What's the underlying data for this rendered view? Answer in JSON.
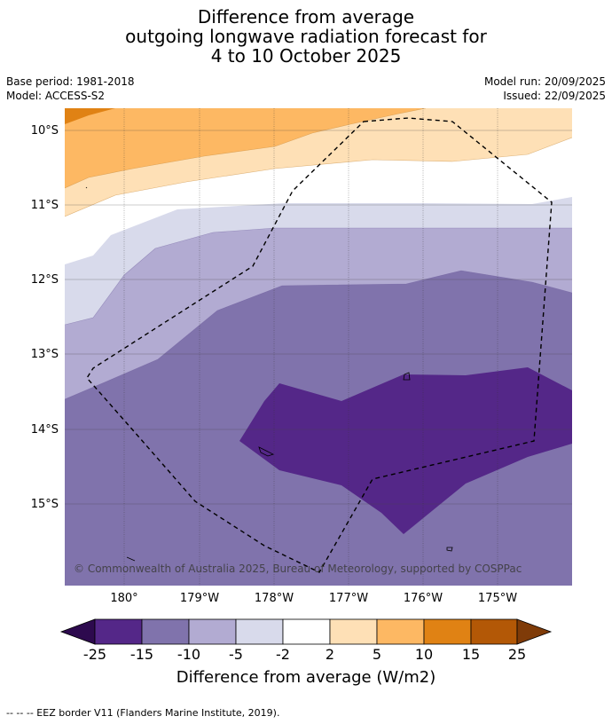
{
  "title": {
    "line1": "Difference from average",
    "line2": "outgoing longwave radiation forecast for",
    "line3": "4 to 10 October 2025"
  },
  "meta": {
    "base_period": "Base period: 1981-2018",
    "model": "Model: ACCESS-S2",
    "model_run": "Model run: 20/09/2025",
    "issued": "Issued: 22/09/2025"
  },
  "map": {
    "lat_labels": [
      "10°S",
      "11°S",
      "12°S",
      "13°S",
      "14°S",
      "15°S"
    ],
    "lon_labels": [
      "180°",
      "179°W",
      "178°W",
      "177°W",
      "176°W",
      "175°W"
    ],
    "copyright": "© Commonwealth of Australia 2025, Bureau of Meteorology, supported by COSPPac"
  },
  "legend": {
    "ticks": [
      "-25",
      "-15",
      "-10",
      "-5",
      "-2",
      "2",
      "5",
      "10",
      "15",
      "25"
    ],
    "label": "Difference from average (W/m2)",
    "colors": [
      "#2d0a4e",
      "#542788",
      "#8073ac",
      "#b2abd2",
      "#d8daeb",
      "#ffffff",
      "#fee0b6",
      "#fdb863",
      "#e08214",
      "#b35806",
      "#7f3b08"
    ]
  },
  "footer": "-- -- -- EEZ border V11 (Flanders Marine Institute, 2019)."
}
